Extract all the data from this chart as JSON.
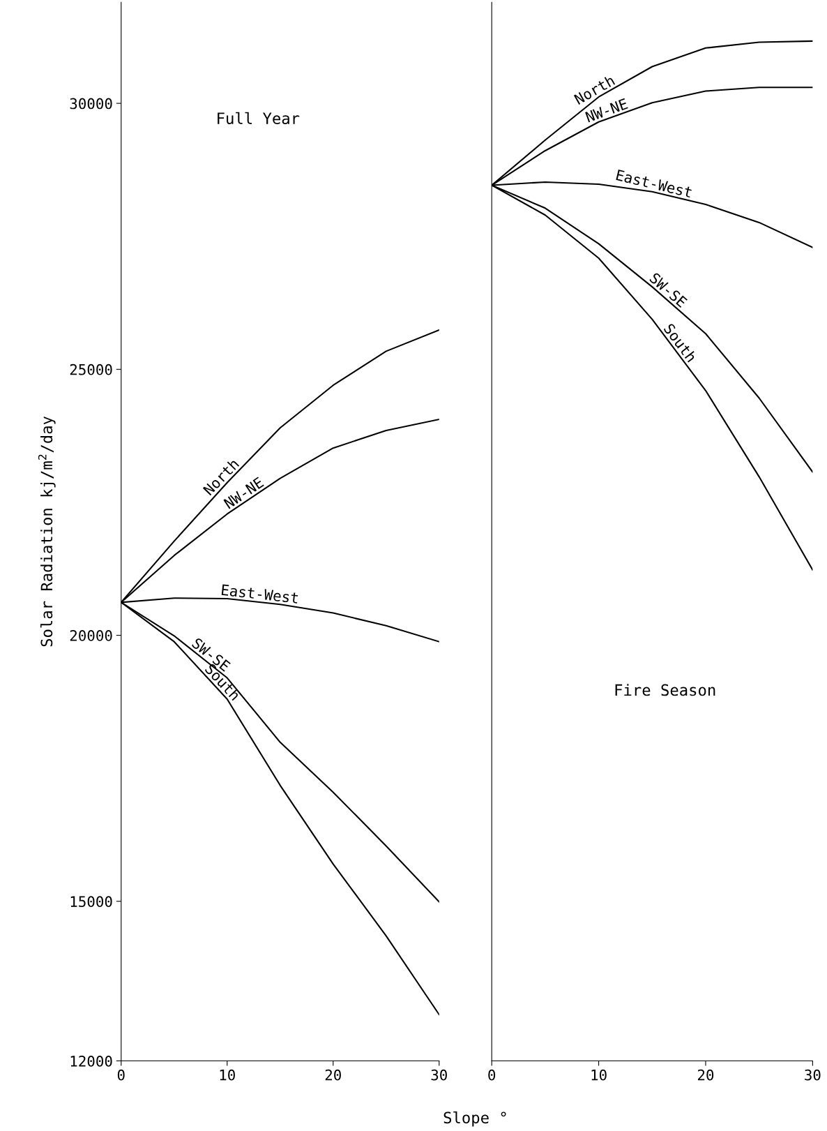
{
  "chart_data": [
    {
      "type": "line",
      "title": "Full Year",
      "xlabel": "Slope °",
      "ylabel": "Solar Radiation kj/m$^{2}$/day",
      "x": [
        0,
        5,
        10,
        15,
        20,
        25,
        30
      ],
      "xlim": [
        0,
        30
      ],
      "xticks": [
        0,
        10,
        20,
        30
      ],
      "ylim": [
        12000,
        31900
      ],
      "yticks": [
        12000,
        15000,
        20000,
        25000,
        30000
      ],
      "grid": false,
      "legend": false,
      "marker": "none",
      "line_style": "solid",
      "series": [
        {
          "name": "North",
          "color": "#000000",
          "values": [
            20620,
            21770,
            22870,
            23900,
            24700,
            25340,
            25740
          ]
        },
        {
          "name": "NW-NE",
          "color": "#000000",
          "values": [
            20620,
            21500,
            22280,
            22950,
            23520,
            23850,
            24060
          ]
        },
        {
          "name": "East-West",
          "color": "#000000",
          "values": [
            20620,
            20700,
            20690,
            20580,
            20420,
            20180,
            19880
          ]
        },
        {
          "name": "SW-SE",
          "color": "#000000",
          "values": [
            20620,
            19990,
            19200,
            17990,
            17050,
            16040,
            14990
          ]
        },
        {
          "name": "South",
          "color": "#000000",
          "values": [
            20620,
            19880,
            18800,
            17180,
            15700,
            14350,
            12870
          ]
        }
      ]
    },
    {
      "type": "line",
      "title": "Fire Season",
      "x": [
        0,
        5,
        10,
        15,
        20,
        25,
        30
      ],
      "xlim": [
        0,
        30
      ],
      "xticks": [
        0,
        10,
        20,
        30
      ],
      "ylim": [
        12000,
        31900
      ],
      "tick_labels": "x",
      "grid": false,
      "legend": false,
      "marker": "none",
      "line_style": "solid",
      "series": [
        {
          "name": "North",
          "color": "#000000",
          "values": [
            28460,
            29310,
            30120,
            30690,
            31040,
            31150,
            31170
          ]
        },
        {
          "name": "NW-NE",
          "color": "#000000",
          "values": [
            28460,
            29110,
            29650,
            30010,
            30230,
            30300,
            30300
          ]
        },
        {
          "name": "East-West",
          "color": "#000000",
          "values": [
            28460,
            28520,
            28480,
            28340,
            28100,
            27760,
            27290
          ]
        },
        {
          "name": "SW-SE",
          "color": "#000000",
          "values": [
            28460,
            28030,
            27360,
            26550,
            25670,
            24460,
            23070
          ]
        },
        {
          "name": "South",
          "color": "#000000",
          "values": [
            28460,
            27900,
            27090,
            25940,
            24600,
            22980,
            21230
          ]
        }
      ]
    }
  ]
}
